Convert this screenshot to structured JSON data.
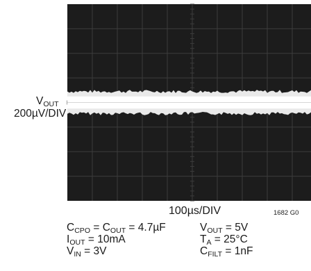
{
  "chart_data": {
    "type": "oscilloscope",
    "grid": true,
    "grid_divisions": {
      "x": 10,
      "y": 8
    },
    "background_color": "#1c1c1c",
    "grid_color": "#3c3c3c",
    "trace_color": "#f4f4f4",
    "y_axis": {
      "signal": "V",
      "signal_sub": "OUT",
      "scale": "200µV/DIV",
      "center_level_div": 4,
      "band_halfwidth_div": 0.45
    },
    "x_axis": {
      "scale": "100µs/DIV"
    },
    "figure_id": "1682 G0",
    "conditions": [
      {
        "id": "cap",
        "main": "C",
        "sub": "CPO",
        "mid": " = C",
        "sub2": "OUT",
        "tail": " = 4.7µF"
      },
      {
        "id": "iout",
        "main": "I",
        "sub": "OUT",
        "tail": " = 10mA"
      },
      {
        "id": "vin",
        "main": "V",
        "sub": "IN",
        "tail": " = 3V"
      },
      {
        "id": "vout",
        "main": "V",
        "sub": "OUT",
        "tail": " = 5V"
      },
      {
        "id": "ta",
        "main": "T",
        "sub": "A",
        "tail": " = 25°C"
      },
      {
        "id": "cfilt",
        "main": "C",
        "sub": "FILT",
        "tail": " = 1nF"
      }
    ]
  }
}
